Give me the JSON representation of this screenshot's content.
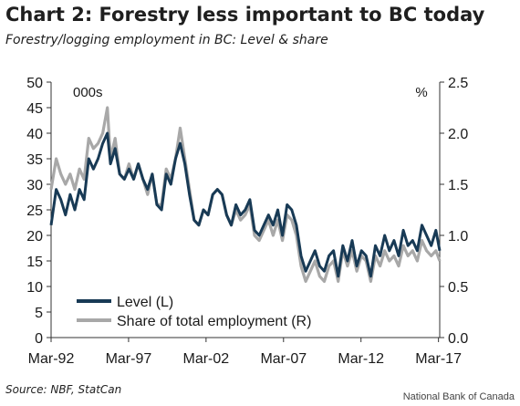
{
  "header": {
    "title": "Chart 2: Forestry less important to BC today",
    "subtitle": "Forestry/logging employment in BC: Level & share"
  },
  "footer": {
    "source": "Source: NBF, StatCan",
    "credit": "National Bank of Canada"
  },
  "colors": {
    "level": "#183a55",
    "share": "#a8a8a8",
    "axis": "#333333"
  },
  "chart_data": {
    "type": "line",
    "title": "Chart 2: Forestry less important to BC today",
    "subtitle": "Forestry/logging employment in BC: Level & share",
    "left_axis": {
      "unit_label": "000s",
      "ylim": [
        0,
        50
      ],
      "ticks": [
        "0",
        "5",
        "10",
        "15",
        "20",
        "25",
        "30",
        "35",
        "40",
        "45",
        "50"
      ]
    },
    "right_axis": {
      "unit_label": "%",
      "ylim": [
        0.0,
        2.5
      ],
      "ticks": [
        "0.0",
        "0.5",
        "1.0",
        "1.5",
        "2.0",
        "2.5"
      ]
    },
    "x_axis": {
      "range": [
        1992.17,
        2017.25
      ],
      "ticks": [
        "Mar-92",
        "Mar-97",
        "Mar-02",
        "Mar-07",
        "Mar-12",
        "Mar-17"
      ],
      "tick_values": [
        1992.17,
        1997.17,
        2002.17,
        2007.17,
        2012.17,
        2017.17
      ]
    },
    "grid": false,
    "legend_position": "bottom-left",
    "legend": [
      "Level (L)",
      "Share of total employment (R)"
    ],
    "series": [
      {
        "name": "Level (L)",
        "axis": "left",
        "x": [
          1992.17,
          1992.5,
          1992.8,
          1993.1,
          1993.4,
          1993.7,
          1994.0,
          1994.3,
          1994.6,
          1994.9,
          1995.2,
          1995.5,
          1995.8,
          1996.0,
          1996.3,
          1996.6,
          1996.9,
          1997.2,
          1997.5,
          1997.8,
          1998.1,
          1998.4,
          1998.7,
          1999.0,
          1999.3,
          1999.6,
          1999.9,
          2000.2,
          2000.5,
          2000.8,
          2001.1,
          2001.4,
          2001.7,
          2002.0,
          2002.3,
          2002.6,
          2002.9,
          2003.2,
          2003.5,
          2003.8,
          2004.1,
          2004.4,
          2004.7,
          2005.0,
          2005.3,
          2005.6,
          2005.9,
          2006.2,
          2006.5,
          2006.8,
          2007.1,
          2007.4,
          2007.7,
          2008.0,
          2008.3,
          2008.6,
          2008.9,
          2009.2,
          2009.5,
          2009.8,
          2010.1,
          2010.4,
          2010.7,
          2011.0,
          2011.3,
          2011.6,
          2011.9,
          2012.2,
          2012.5,
          2012.8,
          2013.1,
          2013.4,
          2013.7,
          2014.0,
          2014.3,
          2014.6,
          2014.9,
          2015.2,
          2015.5,
          2015.8,
          2016.1,
          2016.4,
          2016.7,
          2017.0,
          2017.25
        ],
        "values": [
          22,
          29,
          27,
          24,
          28,
          25,
          29,
          27,
          35,
          33,
          35,
          38,
          40,
          34,
          37,
          32,
          31,
          33,
          31,
          34,
          31,
          29,
          32,
          26,
          25,
          32,
          30,
          35,
          38,
          34,
          28,
          23,
          22,
          25,
          24,
          28,
          29,
          28,
          24,
          22,
          26,
          24,
          25,
          27,
          21,
          20,
          22,
          24,
          22,
          25,
          20,
          26,
          25,
          22,
          16,
          13,
          15,
          17,
          14,
          13,
          16,
          17,
          12,
          18,
          15,
          19,
          14,
          17,
          16,
          12,
          18,
          16,
          20,
          17,
          19,
          16,
          21,
          18,
          19,
          17,
          22,
          20,
          18,
          21,
          17
        ]
      },
      {
        "name": "Share of total employment (R)",
        "axis": "right",
        "x": [
          1992.17,
          1992.5,
          1992.8,
          1993.1,
          1993.4,
          1993.7,
          1994.0,
          1994.3,
          1994.6,
          1994.9,
          1995.2,
          1995.5,
          1995.8,
          1996.0,
          1996.3,
          1996.6,
          1996.9,
          1997.2,
          1997.5,
          1997.8,
          1998.1,
          1998.4,
          1998.7,
          1999.0,
          1999.3,
          1999.6,
          1999.9,
          2000.2,
          2000.5,
          2000.8,
          2001.1,
          2001.4,
          2001.7,
          2002.0,
          2002.3,
          2002.6,
          2002.9,
          2003.2,
          2003.5,
          2003.8,
          2004.1,
          2004.4,
          2004.7,
          2005.0,
          2005.3,
          2005.6,
          2005.9,
          2006.2,
          2006.5,
          2006.8,
          2007.1,
          2007.4,
          2007.7,
          2008.0,
          2008.3,
          2008.6,
          2008.9,
          2009.2,
          2009.5,
          2009.8,
          2010.1,
          2010.4,
          2010.7,
          2011.0,
          2011.3,
          2011.6,
          2011.9,
          2012.2,
          2012.5,
          2012.8,
          2013.1,
          2013.4,
          2013.7,
          2014.0,
          2014.3,
          2014.6,
          2014.9,
          2015.2,
          2015.5,
          2015.8,
          2016.1,
          2016.4,
          2016.7,
          2017.0,
          2017.25
        ],
        "values": [
          1.45,
          1.75,
          1.6,
          1.5,
          1.6,
          1.45,
          1.65,
          1.55,
          1.95,
          1.85,
          1.9,
          2.0,
          2.25,
          1.75,
          1.95,
          1.6,
          1.55,
          1.7,
          1.55,
          1.7,
          1.55,
          1.4,
          1.6,
          1.3,
          1.3,
          1.65,
          1.55,
          1.75,
          2.05,
          1.75,
          1.45,
          1.15,
          1.1,
          1.25,
          1.2,
          1.4,
          1.45,
          1.4,
          1.2,
          1.1,
          1.25,
          1.15,
          1.2,
          1.3,
          1.0,
          0.95,
          1.05,
          1.15,
          1.0,
          1.15,
          0.95,
          1.2,
          1.15,
          1.0,
          0.7,
          0.55,
          0.65,
          0.75,
          0.6,
          0.55,
          0.7,
          0.75,
          0.55,
          0.85,
          0.7,
          0.85,
          0.65,
          0.8,
          0.75,
          0.55,
          0.8,
          0.7,
          0.85,
          0.75,
          0.8,
          0.7,
          0.9,
          0.8,
          0.85,
          0.75,
          0.95,
          0.85,
          0.8,
          0.85,
          0.75
        ]
      }
    ]
  }
}
